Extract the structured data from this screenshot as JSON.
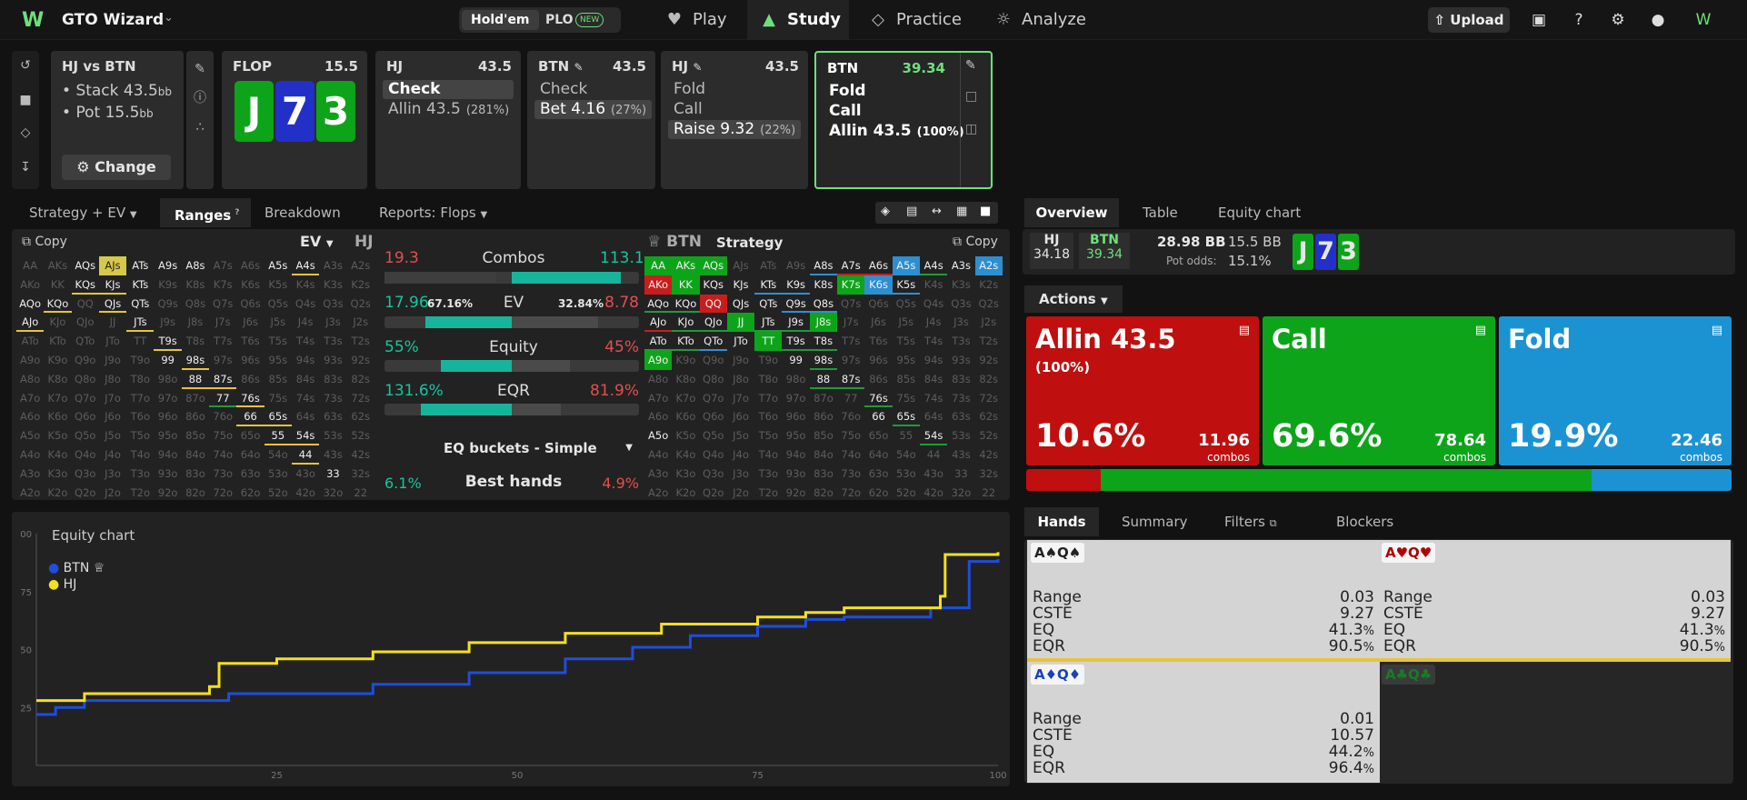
{
  "app": {
    "title": "GTO Wizard",
    "logo": "W"
  },
  "game_toggle": {
    "holdem": "Hold'em",
    "plo": "PLO",
    "plo_badge": "NEW"
  },
  "nav": {
    "play": "Play",
    "study": "Study",
    "practice": "Practice",
    "analyze": "Analyze"
  },
  "top_right": {
    "upload": "Upload"
  },
  "spot": {
    "title": "HJ vs BTN",
    "stack_label": "Stack",
    "stack": "43.5",
    "pot_label": "Pot",
    "pot": "15.5",
    "unit": "bb",
    "change": "Change"
  },
  "flop": {
    "label": "FLOP",
    "pot": "15.5",
    "cards": [
      "J",
      "7",
      "3"
    ]
  },
  "action_panels": [
    {
      "pos": "HJ",
      "num": "43.5",
      "actions": [
        {
          "label": "Check",
          "pct": ""
        },
        {
          "label": "Allin 43.5",
          "pct": "(281%)"
        }
      ]
    },
    {
      "pos": "BTN",
      "num": "43.5",
      "actions": [
        {
          "label": "Check",
          "pct": ""
        },
        {
          "label": "Bet 4.16",
          "pct": "(27%)"
        }
      ]
    },
    {
      "pos": "HJ",
      "num": "43.5",
      "actions": [
        {
          "label": "Fold",
          "pct": ""
        },
        {
          "label": "Call",
          "pct": ""
        },
        {
          "label": "Raise 9.32",
          "pct": "(22%)"
        }
      ]
    },
    {
      "pos": "BTN",
      "num": "39.34",
      "actions": [
        {
          "label": "Fold",
          "pct": ""
        },
        {
          "label": "Call",
          "pct": ""
        },
        {
          "label": "Allin 43.5",
          "pct": "(100%)"
        }
      ]
    }
  ],
  "left_tabs": {
    "strategy": "Strategy + EV",
    "ranges": "Ranges",
    "ranges_badge": "?",
    "breakdown": "Breakdown",
    "reports": "Reports: Flops"
  },
  "left_range": {
    "copy": "Copy",
    "metric": "EV",
    "player": "HJ"
  },
  "right_range": {
    "player": "BTN",
    "mode": "Strategy",
    "copy": "Copy"
  },
  "stats": {
    "combos": {
      "label": "Combos",
      "left": "19.3",
      "right": "113.1"
    },
    "ev": {
      "label": "EV",
      "left": "17.96",
      "left_pct": "67.16%",
      "right_pct": "32.84%",
      "right": "8.78"
    },
    "equity": {
      "label": "Equity",
      "left": "55%",
      "right": "45%"
    },
    "eqr": {
      "label": "EQR",
      "left": "131.6%",
      "right": "81.9%"
    },
    "buckets": "EQ buckets - Simple",
    "best": {
      "label": "Best hands",
      "left": "6.1%",
      "right": "4.9%"
    }
  },
  "right_tabs": {
    "overview": "Overview",
    "table": "Table",
    "equity_chart": "Equity chart"
  },
  "summary": {
    "hj_pos": "HJ",
    "hj_stack": "34.18",
    "btn_pos": "BTN",
    "btn_stack": "39.34",
    "pot_bb": "28.98 BB",
    "pot_bb2": "15.5 BB",
    "pot_odds_label": "Pot odds:",
    "pot_odds": "15.1%"
  },
  "actions_header": "Actions",
  "action_boxes": [
    {
      "name": "Allin 43.5",
      "pct_label": "(100%)",
      "freq": "10.6%",
      "combos": "11.96",
      "combos_label": "combos",
      "color": "#c00f0f"
    },
    {
      "name": "Call",
      "pct_label": "",
      "freq": "69.6%",
      "combos": "78.64",
      "combos_label": "combos",
      "color": "#0ea41a"
    },
    {
      "name": "Fold",
      "pct_label": "",
      "freq": "19.9%",
      "combos": "22.46",
      "combos_label": "combos",
      "color": "#1b93d2"
    }
  ],
  "freq_bar": [
    10.6,
    69.6,
    19.9
  ],
  "bottom_tabs": {
    "hands": "Hands",
    "summary": "Summary",
    "filters": "Filters",
    "blockers": "Blockers"
  },
  "hand_cards": [
    {
      "label": "A♠Q♠",
      "suit_color": "#222222",
      "range": "0.03",
      "cste": "9.27",
      "eq": "41.3",
      "eqr": "90.5"
    },
    {
      "label": "A♥Q♥",
      "suit_color": "#b00000",
      "range": "0.03",
      "cste": "9.27",
      "eq": "41.3",
      "eqr": "90.5"
    },
    {
      "label": "A♦Q♦",
      "suit_color": "#1a3fc0",
      "range": "0.01",
      "cste": "10.57",
      "eq": "44.2",
      "eqr": "96.4"
    },
    {
      "label": "A♣Q♣",
      "suit_color": "#1a7a2a"
    }
  ],
  "hand_labels": {
    "range": "Range",
    "cste": "CSTE",
    "eq": "EQ",
    "eqr": "EQR",
    "pct": "%"
  },
  "chart": {
    "title": "Equity chart",
    "legend_btn": "BTN",
    "legend_hj": "HJ",
    "y_ticks": [
      "00",
      "75",
      "50",
      "25"
    ],
    "x_ticks": [
      "25",
      "50",
      "75",
      "100"
    ]
  },
  "chart_data": {
    "type": "line",
    "title": "Equity chart",
    "xlim": [
      0,
      100
    ],
    "ylim": [
      0,
      100
    ],
    "series": [
      {
        "name": "BTN",
        "color": "#1e4de0",
        "x": [
          0,
          2,
          5,
          20,
          35,
          45,
          55,
          62,
          68,
          75,
          80,
          84,
          93,
          97,
          100
        ],
        "y": [
          22,
          25,
          28,
          31,
          35,
          40,
          46,
          51,
          56,
          60,
          63,
          64,
          68,
          88,
          89
        ]
      },
      {
        "name": "HJ",
        "color": "#f4e11b",
        "x": [
          0,
          5,
          18,
          19,
          25,
          35,
          45,
          55,
          65,
          75,
          80,
          84,
          94,
          94.5,
          100
        ],
        "y": [
          28,
          31,
          34,
          44,
          46,
          49,
          53,
          57,
          61,
          64,
          66,
          68,
          73,
          91,
          92
        ]
      }
    ]
  },
  "grid_hands": [
    "AA",
    "AKs",
    "AQs",
    "AJs",
    "ATs",
    "A9s",
    "A8s",
    "A7s",
    "A6s",
    "A5s",
    "A4s",
    "A3s",
    "A2s",
    "AKo",
    "KK",
    "KQs",
    "KJs",
    "KTs",
    "K9s",
    "K8s",
    "K7s",
    "K6s",
    "K5s",
    "K4s",
    "K3s",
    "K2s",
    "AQo",
    "KQo",
    "QQ",
    "QJs",
    "QTs",
    "Q9s",
    "Q8s",
    "Q7s",
    "Q6s",
    "Q5s",
    "Q4s",
    "Q3s",
    "Q2s",
    "AJo",
    "KJo",
    "QJo",
    "JJ",
    "JTs",
    "J9s",
    "J8s",
    "J7s",
    "J6s",
    "J5s",
    "J4s",
    "J3s",
    "J2s",
    "ATo",
    "KTo",
    "QTo",
    "JTo",
    "TT",
    "T9s",
    "T8s",
    "T7s",
    "T6s",
    "T5s",
    "T4s",
    "T3s",
    "T2s",
    "A9o",
    "K9o",
    "Q9o",
    "J9o",
    "T9o",
    "99",
    "98s",
    "97s",
    "96s",
    "95s",
    "94s",
    "93s",
    "92s",
    "A8o",
    "K8o",
    "Q8o",
    "J8o",
    "T8o",
    "98o",
    "88",
    "87s",
    "86s",
    "85s",
    "84s",
    "83s",
    "82s",
    "A7o",
    "K7o",
    "Q7o",
    "J7o",
    "T7o",
    "97o",
    "87o",
    "77",
    "76s",
    "75s",
    "74s",
    "73s",
    "72s",
    "A6o",
    "K6o",
    "Q6o",
    "J6o",
    "T6o",
    "96o",
    "86o",
    "76o",
    "66",
    "65s",
    "64s",
    "63s",
    "62s",
    "A5o",
    "K5o",
    "Q5o",
    "J5o",
    "T5o",
    "95o",
    "85o",
    "75o",
    "65o",
    "55",
    "54s",
    "53s",
    "52s",
    "A4o",
    "K4o",
    "Q4o",
    "J4o",
    "T4o",
    "94o",
    "84o",
    "74o",
    "64o",
    "54o",
    "44",
    "43s",
    "42s",
    "A3o",
    "K3o",
    "Q3o",
    "J3o",
    "T3o",
    "93o",
    "83o",
    "73o",
    "63o",
    "53o",
    "43o",
    "33",
    "32s",
    "A2o",
    "K2o",
    "Q2o",
    "J2o",
    "T2o",
    "92o",
    "82o",
    "72o",
    "62o",
    "52o",
    "42o",
    "32o",
    "22"
  ]
}
